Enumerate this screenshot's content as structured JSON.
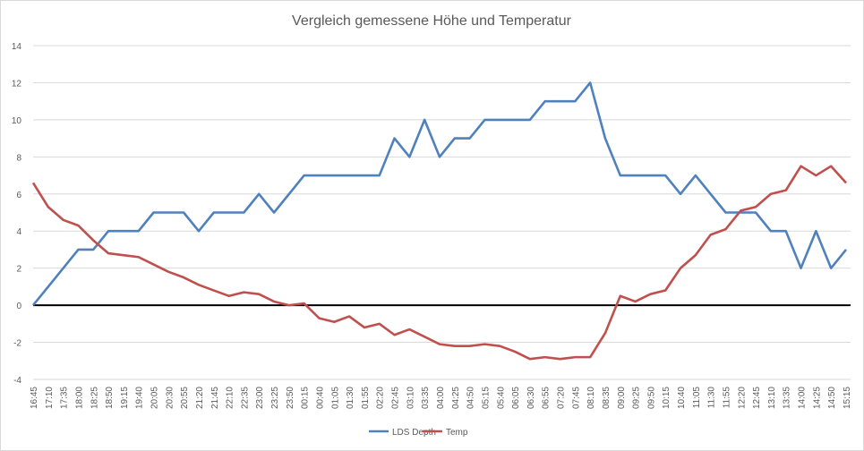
{
  "chart_data": {
    "type": "line",
    "title": "Vergleich gemessene Höhe und Temperatur",
    "xlabel": "",
    "ylabel": "",
    "ylim": [
      -4,
      14
    ],
    "yticks": [
      -4,
      -2,
      0,
      2,
      4,
      6,
      8,
      10,
      12,
      14
    ],
    "grid": true,
    "legend": "bottom",
    "categories": [
      "16:45",
      "17:10",
      "17:35",
      "18:00",
      "18:25",
      "18:50",
      "19:15",
      "19:40",
      "20:05",
      "20:30",
      "20:55",
      "21:20",
      "21:45",
      "22:10",
      "22:35",
      "23:00",
      "23:25",
      "23:50",
      "00:15",
      "00:40",
      "01:05",
      "01:30",
      "01:55",
      "02:20",
      "02:45",
      "03:10",
      "03:35",
      "04:00",
      "04:25",
      "04:50",
      "05:15",
      "05:40",
      "06:05",
      "06:30",
      "06:55",
      "07:20",
      "07:45",
      "08:10",
      "08:35",
      "09:00",
      "09:25",
      "09:50",
      "10:15",
      "10:40",
      "11:05",
      "11:30",
      "11:55",
      "12:20",
      "12:45",
      "13:10",
      "13:35",
      "14:00",
      "14:25",
      "14:50",
      "15:15"
    ],
    "series": [
      {
        "name": "LDS Depth",
        "color": "#4f81bd",
        "values": [
          0,
          1,
          2,
          3,
          3,
          4,
          4,
          4,
          5,
          5,
          5,
          4,
          5,
          5,
          5,
          6,
          5,
          6,
          7,
          7,
          7,
          7,
          7,
          7,
          9,
          8,
          10,
          8,
          9,
          9,
          10,
          10,
          10,
          10,
          11,
          11,
          11,
          12,
          9,
          7,
          7,
          7,
          7,
          6,
          7,
          6,
          5,
          5,
          5,
          4,
          4,
          2,
          4,
          2,
          3
        ]
      },
      {
        "name": "Temp",
        "color": "#c0504d",
        "values": [
          6.6,
          5.3,
          4.6,
          4.3,
          3.5,
          2.8,
          2.7,
          2.6,
          2.2,
          1.8,
          1.5,
          1.1,
          0.8,
          0.5,
          0.7,
          0.6,
          0.2,
          0.0,
          0.1,
          -0.7,
          -0.9,
          -0.6,
          -1.2,
          -1.0,
          -1.6,
          -1.3,
          -1.7,
          -2.1,
          -2.2,
          -2.2,
          -2.1,
          -2.2,
          -2.5,
          -2.9,
          -2.8,
          -2.9,
          -2.8,
          -2.8,
          -1.5,
          0.5,
          0.2,
          0.6,
          0.8,
          2.0,
          2.7,
          3.8,
          4.1,
          5.1,
          5.3,
          6.0,
          6.2,
          7.5,
          7.0,
          7.5,
          6.6
        ]
      }
    ]
  }
}
